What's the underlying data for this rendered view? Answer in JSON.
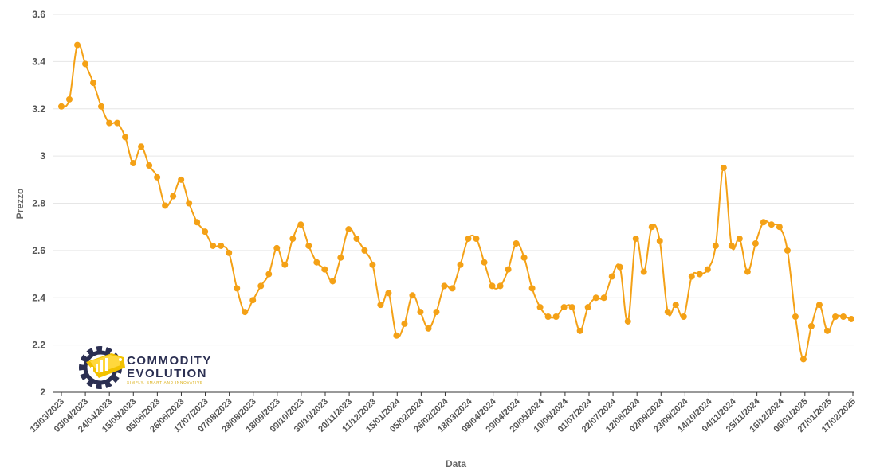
{
  "chart_data": {
    "type": "line",
    "xlabel": "Data",
    "ylabel": "Prezzo",
    "ylim": [
      2,
      3.6
    ],
    "yticks": [
      "2",
      "2.2",
      "2.4",
      "2.6",
      "2.8",
      "3",
      "3.2",
      "3.4",
      "3.6"
    ],
    "grid": true,
    "color": "#F4A116",
    "xticks": [
      "13/03/2023",
      "03/04/2023",
      "24/04/2023",
      "15/05/2023",
      "05/06/2023",
      "26/06/2023",
      "17/07/2023",
      "07/08/2023",
      "28/08/2023",
      "18/09/2023",
      "09/10/2023",
      "30/10/2023",
      "20/11/2023",
      "11/12/2023",
      "15/01/2024",
      "05/02/2024",
      "26/02/2024",
      "18/03/2024",
      "08/04/2024",
      "29/04/2024",
      "20/05/2024",
      "10/06/2024",
      "01/07/2024",
      "22/07/2024",
      "12/08/2024",
      "02/09/2024",
      "23/09/2024",
      "14/10/2024",
      "04/11/2024",
      "25/11/2024",
      "16/12/2024",
      "06/01/2025",
      "27/01/2025",
      "17/02/2025"
    ],
    "values": [
      3.21,
      3.24,
      3.47,
      3.39,
      3.31,
      3.21,
      3.14,
      3.14,
      3.08,
      2.97,
      3.04,
      2.96,
      2.91,
      2.79,
      2.83,
      2.9,
      2.8,
      2.72,
      2.68,
      2.62,
      2.62,
      2.59,
      2.44,
      2.34,
      2.39,
      2.45,
      2.5,
      2.61,
      2.54,
      2.65,
      2.71,
      2.62,
      2.55,
      2.52,
      2.47,
      2.57,
      2.69,
      2.65,
      2.6,
      2.54,
      2.37,
      2.42,
      2.24,
      2.29,
      2.41,
      2.34,
      2.27,
      2.34,
      2.45,
      2.44,
      2.54,
      2.65,
      2.65,
      2.55,
      2.45,
      2.45,
      2.52,
      2.63,
      2.57,
      2.44,
      2.36,
      2.32,
      2.32,
      2.36,
      2.36,
      2.26,
      2.36,
      2.4,
      2.4,
      2.49,
      2.53,
      2.3,
      2.65,
      2.51,
      2.7,
      2.64,
      2.34,
      2.37,
      2.32,
      2.49,
      2.5,
      2.52,
      2.62,
      2.95,
      2.62,
      2.65,
      2.51,
      2.63,
      2.72,
      2.71,
      2.7,
      2.6,
      2.32,
      2.14,
      2.28,
      2.37,
      2.26,
      2.32,
      2.32,
      2.31
    ]
  },
  "logo": {
    "name": "COMMODITY EVOLUTION",
    "line1": "COMMODITY",
    "line2": "EVOLUTION",
    "tagline": "SIMPLY, SMART AND INNOVATIVE"
  }
}
